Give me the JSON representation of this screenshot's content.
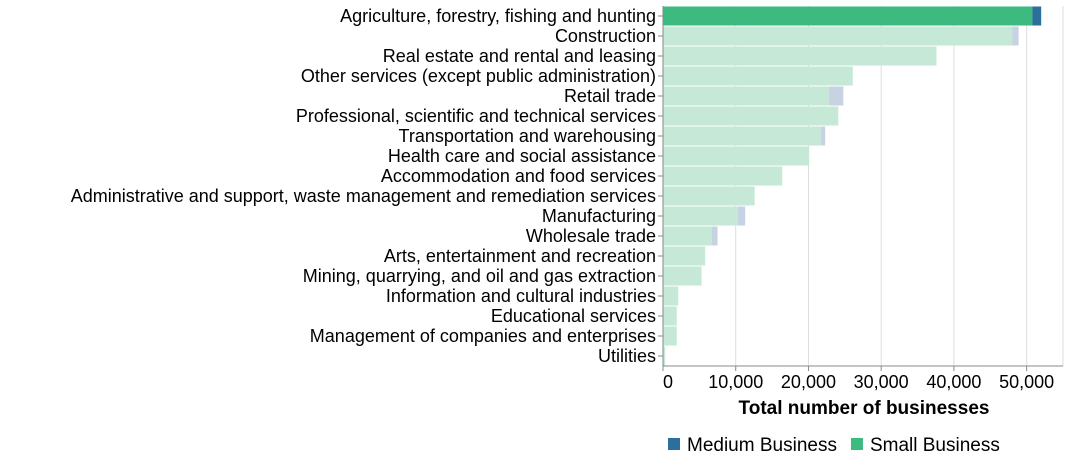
{
  "chart_data": {
    "type": "bar",
    "orientation": "horizontal",
    "stacked": true,
    "title": "",
    "xlabel": "Total number of businesses",
    "ylabel": "",
    "xlim": [
      0,
      55000
    ],
    "x_ticks": [
      0,
      10000,
      20000,
      30000,
      40000,
      50000
    ],
    "x_tick_labels": [
      "0",
      "10,000",
      "20,000",
      "30,000",
      "40,000",
      "50,000"
    ],
    "grid": true,
    "legend_position": "bottom",
    "highlighted_category": "Agriculture, forestry, fishing and hunting",
    "categories": [
      "Agriculture, forestry, fishing and hunting",
      "Construction",
      "Real estate and rental and leasing",
      "Other services (except public administration)",
      "Retail trade",
      "Professional, scientific and technical services",
      "Transportation and warehousing",
      "Health care and social assistance",
      "Accommodation and food services",
      "Administrative and support, waste management and remediation services",
      "Manufacturing",
      "Wholesale trade",
      "Arts, entertainment and recreation",
      "Mining, quarrying, and oil and gas extraction",
      "Information and cultural industries",
      "Educational services",
      "Management of companies and enterprises",
      "Utilities"
    ],
    "series": [
      {
        "name": "Small Business",
        "color": "#3cba7f",
        "faded_color": "#c5e9d6",
        "values": [
          50800,
          48000,
          37600,
          26100,
          22800,
          24100,
          21700,
          20100,
          16400,
          12600,
          10300,
          6700,
          5800,
          5300,
          2100,
          1900,
          1900,
          300
        ]
      },
      {
        "name": "Medium Business",
        "color": "#2c6e9c",
        "faded_color": "#c7d3e2",
        "values": [
          1200,
          900,
          0,
          0,
          2000,
          0,
          600,
          0,
          0,
          0,
          1000,
          800,
          0,
          0,
          0,
          0,
          0,
          0
        ]
      }
    ]
  },
  "legend": {
    "items": [
      {
        "label": "Medium Business",
        "color": "#2c6e9c"
      },
      {
        "label": "Small Business",
        "color": "#3cba7f"
      }
    ]
  }
}
